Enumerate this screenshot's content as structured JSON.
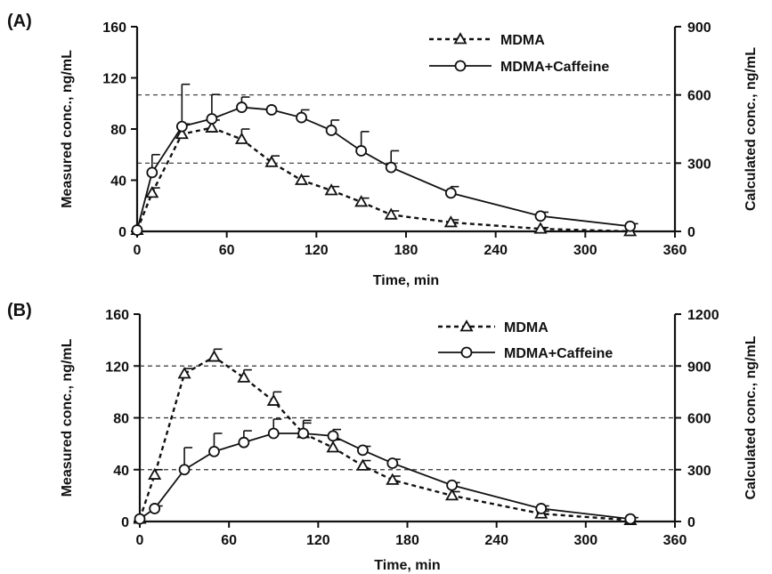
{
  "chart_data": [
    {
      "type": "line",
      "panel_label": "(A)",
      "xlabel": "Time, min",
      "ylabel": "Measured conc., ng/mL",
      "y2label": "Calculated conc., ng/mL",
      "xlim": [
        0,
        360
      ],
      "ylim": [
        0,
        160
      ],
      "y2lim": [
        0,
        900
      ],
      "xticks": [
        0,
        60,
        120,
        180,
        240,
        300,
        360
      ],
      "yticks": [
        0,
        40,
        80,
        120,
        160
      ],
      "y2ticks": [
        0,
        300,
        600,
        900
      ],
      "grid": "dashed horizontal at right-axis ticks",
      "legend_position": "top-right",
      "series": [
        {
          "name": "MDMA",
          "marker": "triangle",
          "line": "dashed",
          "x": [
            0,
            10,
            30,
            50,
            70,
            90,
            110,
            130,
            150,
            170,
            210,
            270,
            330
          ],
          "y": [
            1,
            30,
            76,
            81,
            72,
            54,
            40,
            32,
            23,
            13,
            7,
            2,
            0
          ],
          "err": [
            0,
            4,
            8,
            6,
            8,
            5,
            3,
            3,
            3,
            3,
            2,
            1,
            0
          ]
        },
        {
          "name": "MDMA+Caffeine",
          "marker": "circle",
          "line": "solid",
          "x": [
            0,
            10,
            30,
            50,
            70,
            90,
            110,
            130,
            150,
            170,
            210,
            270,
            330
          ],
          "y": [
            1,
            46,
            82,
            88,
            97,
            95,
            89,
            79,
            63,
            50,
            30,
            12,
            4
          ],
          "err": [
            0,
            14,
            33,
            19,
            8,
            0,
            6,
            8,
            15,
            13,
            5,
            3,
            2
          ]
        }
      ]
    },
    {
      "type": "line",
      "panel_label": "(B)",
      "xlabel": "Time, min",
      "ylabel": "Measured conc., ng/mL",
      "y2label": "Calculated conc., ng/mL",
      "xlim": [
        0,
        360
      ],
      "ylim": [
        0,
        160
      ],
      "y2lim": [
        0,
        1200
      ],
      "xticks": [
        0,
        60,
        120,
        180,
        240,
        300,
        360
      ],
      "yticks": [
        0,
        40,
        80,
        120,
        160
      ],
      "y2ticks": [
        0,
        300,
        600,
        900,
        1200
      ],
      "grid": "dashed horizontal at right-axis ticks",
      "legend_position": "top-right",
      "series": [
        {
          "name": "MDMA",
          "marker": "triangle",
          "line": "dashed",
          "x": [
            0,
            10,
            30,
            50,
            70,
            90,
            110,
            130,
            150,
            170,
            210,
            270,
            330
          ],
          "y": [
            2,
            36,
            114,
            127,
            111,
            93,
            68,
            57,
            43,
            32,
            20,
            6,
            1
          ],
          "err": [
            0,
            4,
            4,
            6,
            6,
            7,
            8,
            6,
            4,
            3,
            3,
            2,
            0
          ]
        },
        {
          "name": "MDMA+Caffeine",
          "marker": "circle",
          "line": "solid",
          "x": [
            0,
            10,
            30,
            50,
            70,
            90,
            110,
            130,
            150,
            170,
            210,
            270,
            330
          ],
          "y": [
            2,
            10,
            40,
            54,
            61,
            68,
            68,
            66,
            55,
            45,
            28,
            10,
            2
          ],
          "err": [
            0,
            2,
            17,
            14,
            9,
            11,
            10,
            5,
            3,
            3,
            2,
            2,
            1
          ]
        }
      ]
    }
  ]
}
